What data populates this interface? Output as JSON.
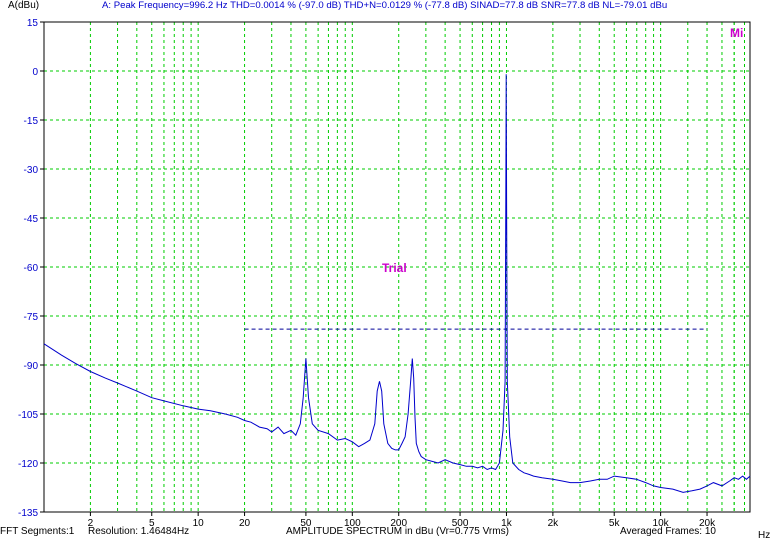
{
  "header": {
    "y_unit": "A(dBu)",
    "measurement": "A: Peak Frequency=996.2 Hz  THD=0.0014 % (-97.0 dB)  THD+N=0.0129 % (-77.8 dB)  SINAD=77.8 dB  SNR=77.8 dB  NL=-79.01 dBu"
  },
  "logo": "Mi",
  "watermark": "Trial",
  "footer": {
    "segments": "FFT Segments:1",
    "resolution": "Resolution: 1.46484Hz",
    "title": "AMPLITUDE SPECTRUM in dBu (Vr=0.775 Vrms)",
    "averaged": "Averaged Frames: 10",
    "x_unit": "Hz"
  },
  "colors": {
    "trace": "#0000cc",
    "grid": "#00cc00",
    "logo": "#cc00cc",
    "watermark": "#cc00cc",
    "reference_line": "#000099"
  },
  "chart_data": {
    "type": "line",
    "xscale": "log",
    "xlim": [
      1,
      38000
    ],
    "ylim": [
      -135,
      15
    ],
    "grid": true,
    "x_ticks": [
      2,
      5,
      10,
      20,
      50,
      100,
      200,
      500,
      1000,
      2000,
      5000,
      10000,
      20000
    ],
    "x_tick_labels": [
      "2",
      "5",
      "10",
      "20",
      "50",
      "100",
      "200",
      "500",
      "1k",
      "2k",
      "5k",
      "10k",
      "20k"
    ],
    "y_ticks": [
      15,
      0,
      -15,
      -30,
      -45,
      -60,
      -75,
      -90,
      -105,
      -120,
      -135
    ],
    "y_tick_labels": [
      "15",
      "0",
      "-15",
      "-30",
      "-45",
      "-60",
      "-75",
      "-90",
      "-105",
      "-120",
      "-135"
    ],
    "series": [
      {
        "x": [
          1.0,
          1.3,
          1.6,
          2.0,
          2.5,
          3.0,
          4.0,
          5.0,
          6.0,
          8.0,
          10.0,
          12.0,
          15.0,
          18.0,
          20.0,
          22.0,
          25.0,
          28.0,
          30.0,
          33.0,
          36.0,
          40.0,
          43.0,
          46.0,
          48.0,
          50.0,
          52.0,
          55.0,
          60.0,
          70.0,
          80.0,
          90.0,
          100.0,
          110.0,
          120.0,
          130.0,
          140.0,
          145.0,
          150.0,
          155.0,
          160.0,
          170.0,
          180.0,
          190.0,
          200.0,
          210.0,
          220.0,
          230.0,
          240.0,
          245.0,
          250.0,
          255.0,
          260.0,
          270.0,
          280.0,
          300.0,
          330.0,
          360.0,
          400.0,
          450.0,
          500.0,
          550.0,
          600.0,
          650.0,
          700.0,
          750.0,
          800.0,
          850.0,
          900.0,
          950.0,
          980.0,
          990.0,
          996.2,
          1002.0,
          1012.0,
          1050.0,
          1100.0,
          1200.0,
          1300.0,
          1400.0,
          1500.0,
          1700.0,
          2000.0,
          2300.0,
          2600.0,
          3000.0,
          3500.0,
          4000.0,
          4500.0,
          5000.0,
          6000.0,
          7000.0,
          8000.0,
          9000.0,
          10000.0,
          12000.0,
          14000.0,
          16000.0,
          18000.0,
          20000.0,
          22000.0,
          25000.0,
          28000.0,
          30000.0,
          32000.0,
          34000.0,
          36000.0,
          38000.0
        ],
        "y": [
          -83.5,
          -87.0,
          -89.5,
          -92.0,
          -94.0,
          -95.5,
          -98.0,
          -100.0,
          -101.0,
          -102.5,
          -103.5,
          -104.0,
          -105.0,
          -106.0,
          -107.0,
          -107.5,
          -109.0,
          -109.5,
          -110.5,
          -109.0,
          -111.0,
          -110.0,
          -111.5,
          -108.0,
          -100.0,
          -88.0,
          -100.0,
          -108.0,
          -110.0,
          -111.0,
          -113.0,
          -112.5,
          -113.5,
          -115.0,
          -114.0,
          -113.0,
          -108.0,
          -98.0,
          -95.0,
          -98.0,
          -108.0,
          -114.0,
          -115.5,
          -116.0,
          -116.0,
          -114.0,
          -112.0,
          -105.0,
          -94.0,
          -88.0,
          -94.0,
          -106.0,
          -114.0,
          -116.5,
          -118.0,
          -119.0,
          -119.5,
          -120.0,
          -119.0,
          -120.0,
          -120.5,
          -121.0,
          -121.0,
          -121.5,
          -121.0,
          -122.0,
          -121.5,
          -122.0,
          -120.0,
          -110.0,
          -95.0,
          -40.0,
          -1.0,
          -40.0,
          -95.0,
          -112.0,
          -120.0,
          -122.0,
          -123.0,
          -123.5,
          -124.0,
          -124.5,
          -125.0,
          -125.5,
          -126.0,
          -126.0,
          -125.5,
          -125.0,
          -125.0,
          -124.0,
          -124.5,
          -125.0,
          -126.0,
          -127.0,
          -127.5,
          -128.0,
          -129.0,
          -128.5,
          -128.0,
          -127.0,
          -126.0,
          -127.0,
          -125.5,
          -124.5,
          -125.0,
          -124.0,
          -125.0,
          -124.0
        ]
      }
    ],
    "reference_line": {
      "x": [
        20,
        20000
      ],
      "y": -79
    }
  }
}
